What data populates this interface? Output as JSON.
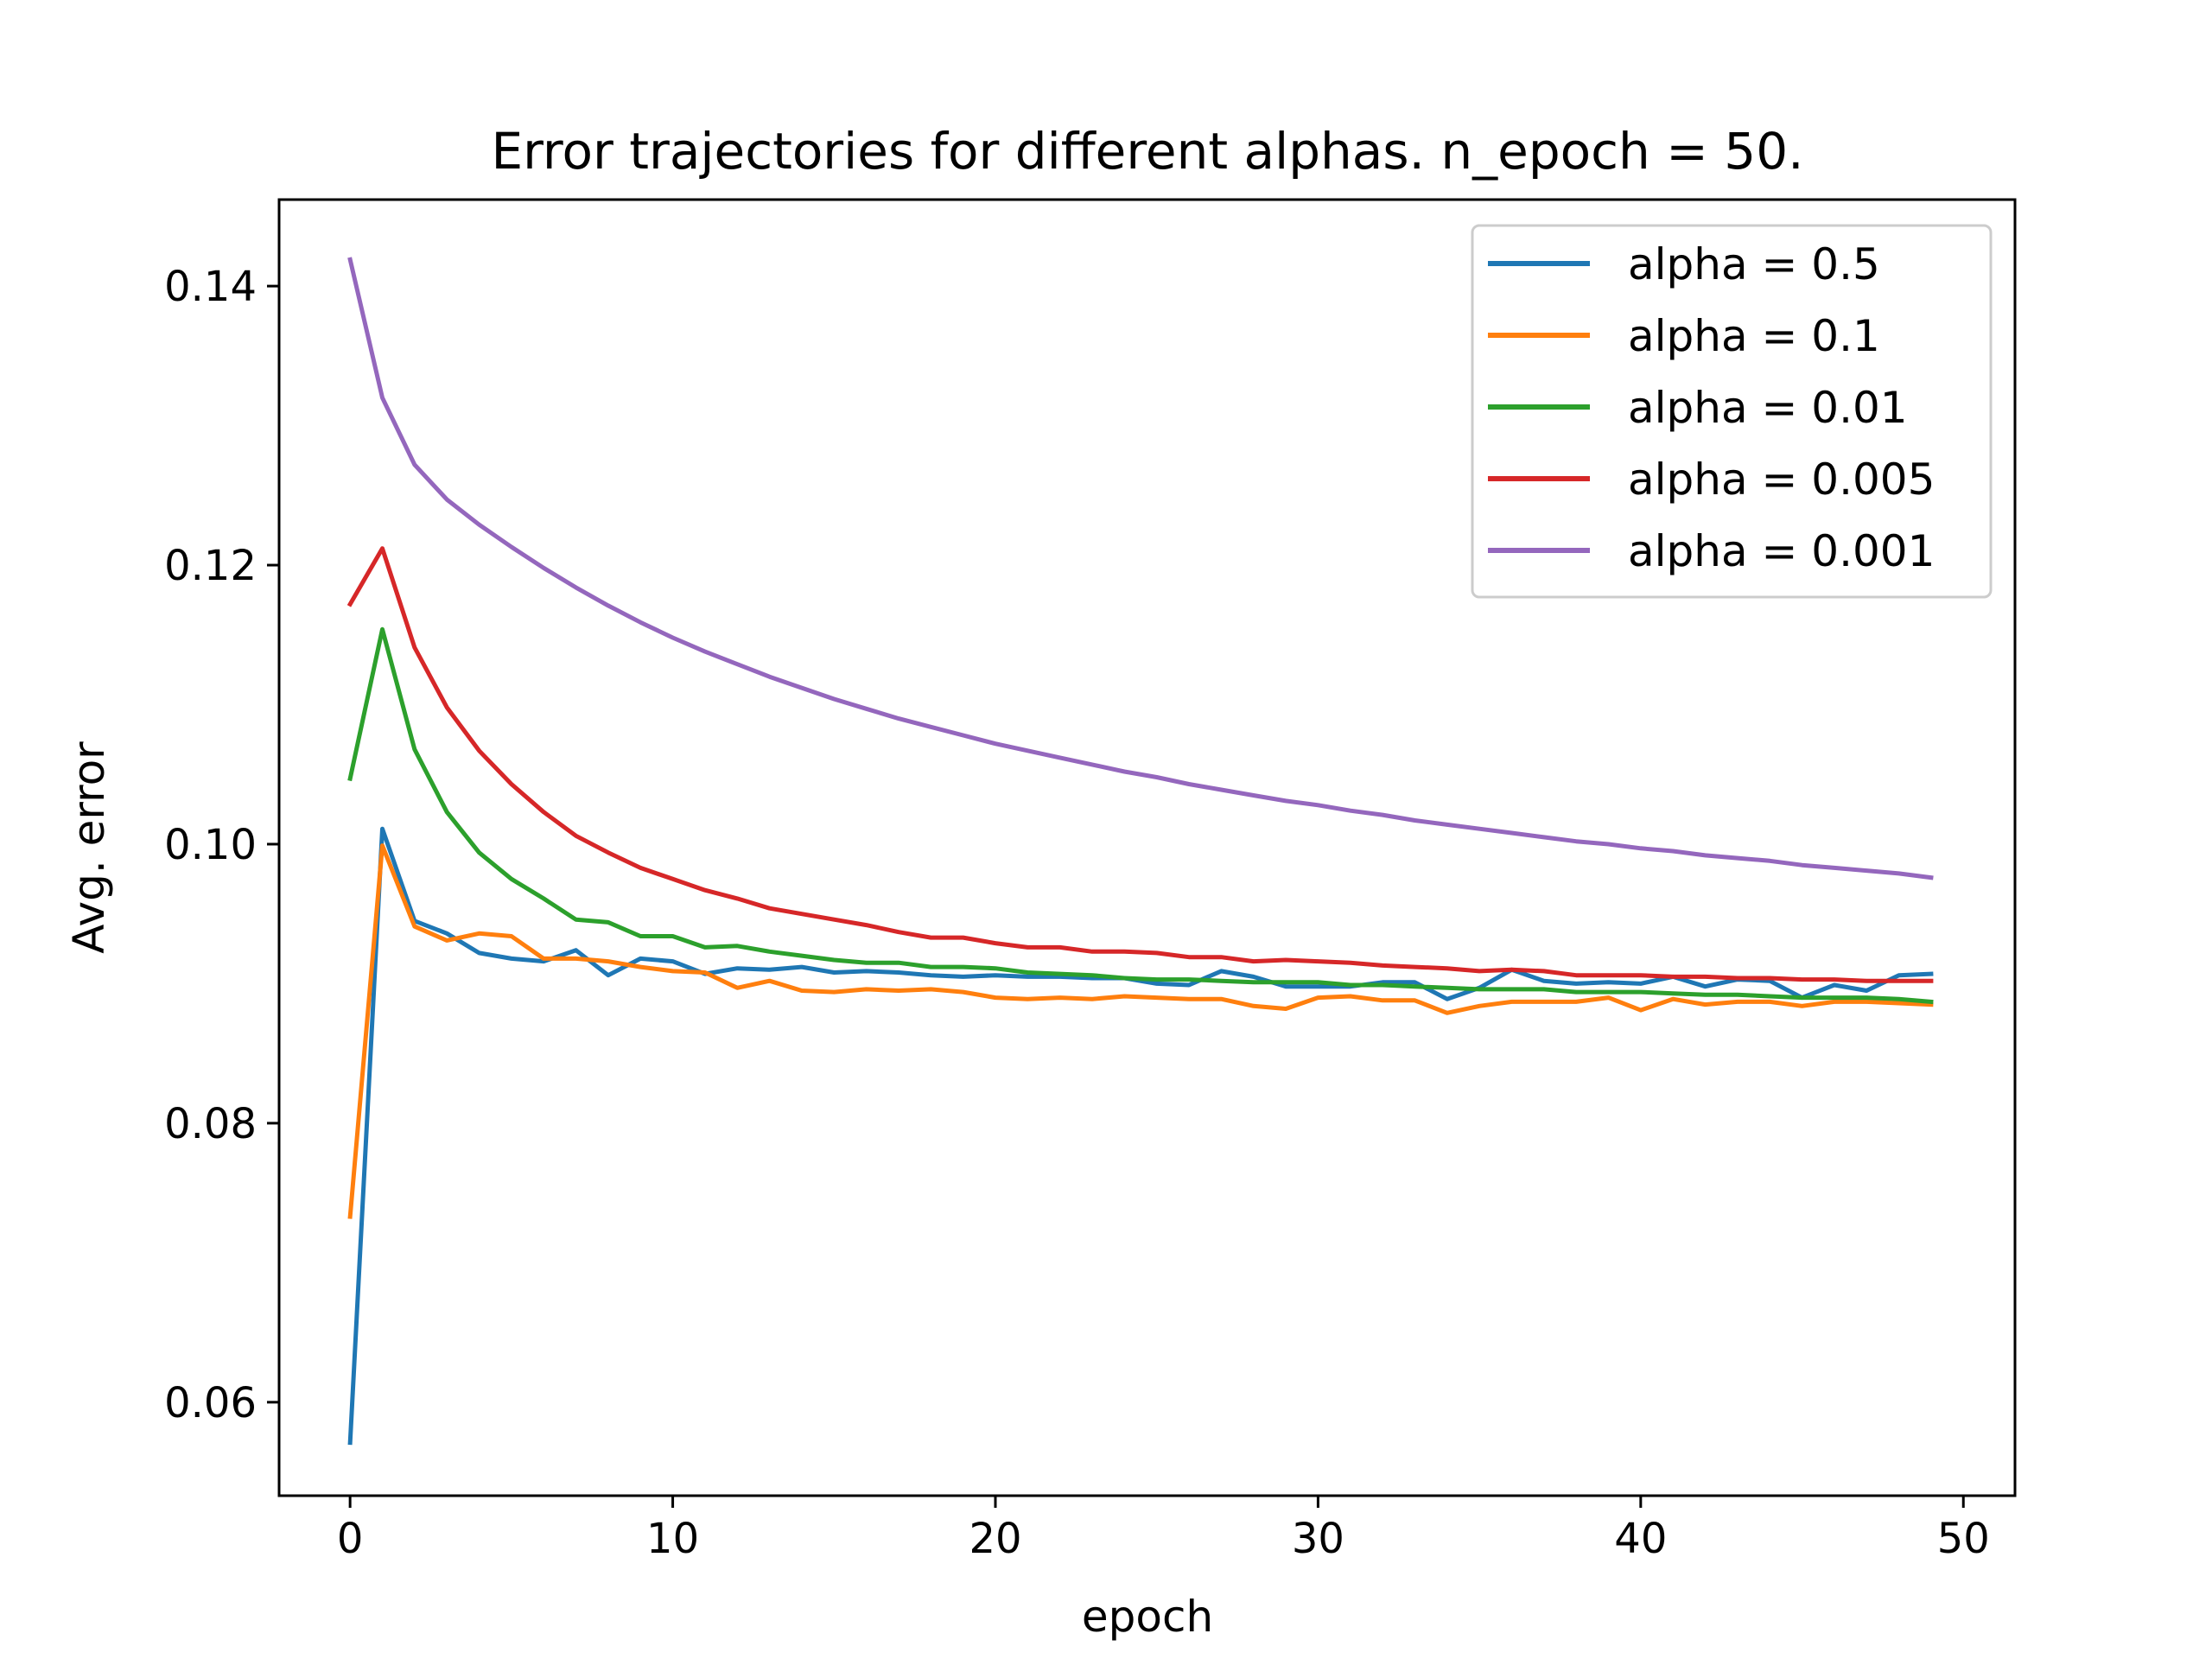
{
  "chart_data": {
    "type": "line",
    "title": "Error trajectories for different alphas. n_epoch = 50.",
    "xlabel": "epoch",
    "ylabel": "Avg. error",
    "xlim": [
      -2.2,
      51.6
    ],
    "ylim": [
      0.0533,
      0.1462
    ],
    "xticks": [
      0,
      10,
      20,
      30,
      40,
      50
    ],
    "yticks": [
      0.06,
      0.08,
      0.1,
      0.12,
      0.14
    ],
    "xtick_labels": [
      "0",
      "10",
      "20",
      "30",
      "40",
      "50"
    ],
    "ytick_labels": [
      "0.06",
      "0.08",
      "0.10",
      "0.12",
      "0.14"
    ],
    "grid": false,
    "legend_position": "top-right",
    "x": [
      0,
      1,
      2,
      3,
      4,
      5,
      6,
      7,
      8,
      9,
      10,
      11,
      12,
      13,
      14,
      15,
      16,
      17,
      18,
      19,
      20,
      21,
      22,
      23,
      24,
      25,
      26,
      27,
      28,
      29,
      30,
      31,
      32,
      33,
      34,
      35,
      36,
      37,
      38,
      39,
      40,
      41,
      42,
      43,
      44,
      45,
      46,
      47,
      48,
      49
    ],
    "series": [
      {
        "name": "alpha = 0.5",
        "color": "#1f77b4",
        "values": [
          0.0571,
          0.1011,
          0.0945,
          0.0936,
          0.0922,
          0.0918,
          0.0916,
          0.0924,
          0.0906,
          0.0918,
          0.0916,
          0.0907,
          0.0911,
          0.091,
          0.0912,
          0.0908,
          0.0909,
          0.0908,
          0.0906,
          0.0905,
          0.0906,
          0.0905,
          0.0905,
          0.0904,
          0.0904,
          0.09,
          0.0899,
          0.0909,
          0.0905,
          0.0898,
          0.0898,
          0.0898,
          0.0901,
          0.0901,
          0.0889,
          0.0897,
          0.091,
          0.0902,
          0.09,
          0.0901,
          0.09,
          0.0905,
          0.0898,
          0.0903,
          0.0902,
          0.089,
          0.0899,
          0.0895,
          0.0906,
          0.0907
        ]
      },
      {
        "name": "alpha = 0.1",
        "color": "#ff7f0e",
        "values": [
          0.0733,
          0.0999,
          0.0941,
          0.0931,
          0.0936,
          0.0934,
          0.0918,
          0.0918,
          0.0916,
          0.0912,
          0.0909,
          0.0908,
          0.0897,
          0.0902,
          0.0895,
          0.0894,
          0.0896,
          0.0895,
          0.0896,
          0.0894,
          0.089,
          0.0889,
          0.089,
          0.0889,
          0.0891,
          0.089,
          0.0889,
          0.0889,
          0.0884,
          0.0882,
          0.089,
          0.0891,
          0.0888,
          0.0888,
          0.0879,
          0.0884,
          0.0887,
          0.0887,
          0.0887,
          0.089,
          0.0881,
          0.0889,
          0.0885,
          0.0887,
          0.0887,
          0.0884,
          0.0887,
          0.0887,
          0.0886,
          0.0885
        ]
      },
      {
        "name": "alpha = 0.01",
        "color": "#2ca02c",
        "values": [
          0.1047,
          0.1154,
          0.1068,
          0.1023,
          0.0994,
          0.0975,
          0.0961,
          0.0946,
          0.0944,
          0.0934,
          0.0934,
          0.0926,
          0.0927,
          0.0923,
          0.092,
          0.0917,
          0.0915,
          0.0915,
          0.0912,
          0.0912,
          0.0911,
          0.0908,
          0.0907,
          0.0906,
          0.0904,
          0.0903,
          0.0903,
          0.0902,
          0.0901,
          0.0901,
          0.0901,
          0.0899,
          0.0899,
          0.0898,
          0.0897,
          0.0896,
          0.0896,
          0.0896,
          0.0894,
          0.0894,
          0.0894,
          0.0893,
          0.0892,
          0.0892,
          0.0891,
          0.089,
          0.089,
          0.089,
          0.0889,
          0.0887
        ]
      },
      {
        "name": "alpha = 0.005",
        "color": "#d62728",
        "values": [
          0.1172,
          0.1212,
          0.1141,
          0.1098,
          0.1067,
          0.1043,
          0.1023,
          0.1006,
          0.0994,
          0.0983,
          0.0975,
          0.0967,
          0.0961,
          0.0954,
          0.095,
          0.0946,
          0.0942,
          0.0937,
          0.0933,
          0.0933,
          0.0929,
          0.0926,
          0.0926,
          0.0923,
          0.0923,
          0.0922,
          0.0919,
          0.0919,
          0.0916,
          0.0917,
          0.0916,
          0.0915,
          0.0913,
          0.0912,
          0.0911,
          0.0909,
          0.091,
          0.0909,
          0.0906,
          0.0906,
          0.0906,
          0.0905,
          0.0905,
          0.0904,
          0.0904,
          0.0903,
          0.0903,
          0.0902,
          0.0902,
          0.0902
        ]
      },
      {
        "name": "alpha = 0.001",
        "color": "#9467bd",
        "values": [
          0.1419,
          0.132,
          0.1272,
          0.1247,
          0.1229,
          0.1213,
          0.1198,
          0.1184,
          0.1171,
          0.1159,
          0.1148,
          0.1138,
          0.1129,
          0.112,
          0.1112,
          0.1104,
          0.1097,
          0.109,
          0.1084,
          0.1078,
          0.1072,
          0.1067,
          0.1062,
          0.1057,
          0.1052,
          0.1048,
          0.1043,
          0.1039,
          0.1035,
          0.1031,
          0.1028,
          0.1024,
          0.1021,
          0.1017,
          0.1014,
          0.1011,
          0.1008,
          0.1005,
          0.1002,
          0.1,
          0.0997,
          0.0995,
          0.0992,
          0.099,
          0.0988,
          0.0985,
          0.0983,
          0.0981,
          0.0979,
          0.0976
        ]
      }
    ]
  }
}
